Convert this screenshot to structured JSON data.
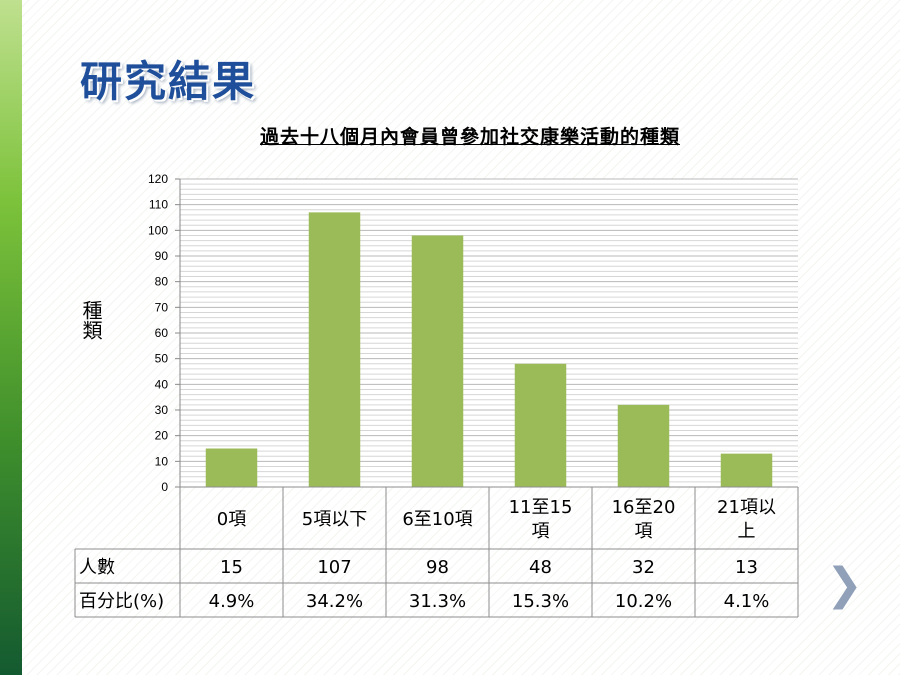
{
  "slide": {
    "title": "研究結果",
    "next_icon": "chevron-right-icon"
  },
  "chart_data": {
    "type": "bar",
    "title": "過去十八個月內會員曾參加社交康樂活動的種類",
    "ylabel": "種類",
    "ylim": [
      0,
      120
    ],
    "yticks": [
      0,
      10,
      20,
      30,
      40,
      50,
      60,
      70,
      80,
      90,
      100,
      110,
      120
    ],
    "categories": [
      [
        "0項"
      ],
      [
        "5項以下"
      ],
      [
        "6至10項"
      ],
      [
        "11至15",
        "項"
      ],
      [
        "16至20",
        "項"
      ],
      [
        "21項以",
        "上"
      ]
    ],
    "values": [
      15,
      107,
      98,
      48,
      32,
      13
    ],
    "bar_color": "#9bbb59",
    "table": {
      "rows": [
        {
          "label": "人數",
          "cells": [
            "15",
            "107",
            "98",
            "48",
            "32",
            "13"
          ]
        },
        {
          "label": "百分比(%)",
          "cells": [
            "4.9%",
            "34.2%",
            "31.3%",
            "15.3%",
            "10.2%",
            "4.1%"
          ]
        }
      ]
    }
  }
}
